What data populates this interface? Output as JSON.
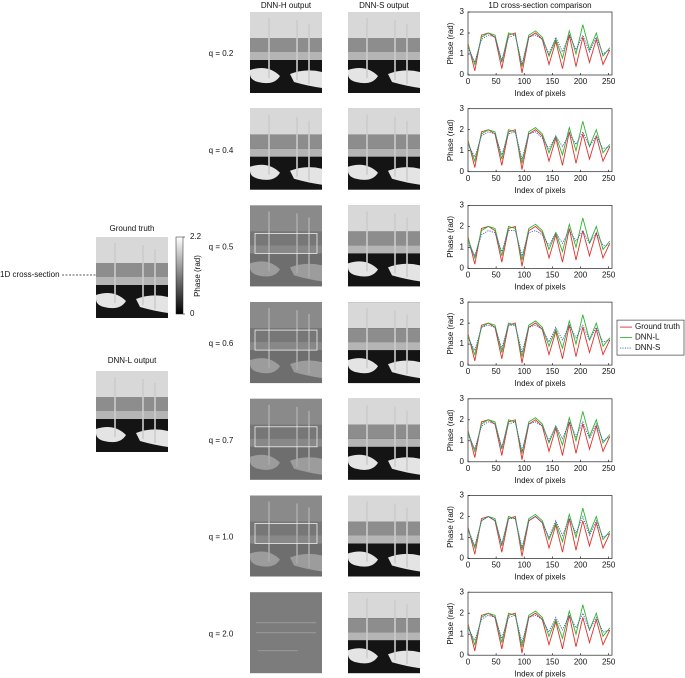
{
  "figure": {
    "columns": [
      "DNN-H output",
      "DNN-S output"
    ],
    "rows": [
      "q = 0.2",
      "q = 0.4",
      "q = 0.5",
      "q = 0.6",
      "q = 0.7",
      "q = 1.0",
      "q = 2.0"
    ],
    "ground_truth": "Ground truth",
    "cross_section": "1D cross-section",
    "dnn_l": "DNN-L output",
    "colorbar": {
      "label": "Phase (rad)",
      "lim": [
        0,
        2.2
      ],
      "ticks": [
        0,
        2.2
      ]
    }
  },
  "chart_data": [
    {
      "type": "line",
      "title": "1D cross-section comparison",
      "xlabel": "Index of pixels",
      "ylabel": "Phase (rad)",
      "x": [
        0,
        12,
        24,
        36,
        48,
        60,
        72,
        84,
        96,
        108,
        120,
        132,
        144,
        156,
        168,
        180,
        192,
        204,
        216,
        228,
        240,
        252
      ],
      "xlim": [
        0,
        256
      ],
      "ylim": [
        0,
        3
      ],
      "xticks": [
        0,
        50,
        100,
        150,
        200,
        250
      ],
      "yticks": [
        0,
        1,
        2,
        3
      ],
      "series": [
        {
          "name": "Ground truth",
          "color": "#e0302a",
          "style": "solid",
          "values": [
            1.5,
            0.2,
            1.9,
            2.0,
            1.8,
            0.3,
            1.9,
            2.0,
            0.1,
            1.8,
            2.0,
            1.7,
            0.5,
            1.6,
            0.3,
            1.9,
            0.4,
            1.8,
            0.6,
            1.7,
            0.5,
            1.2
          ]
        },
        {
          "name": "DNN-L",
          "color": "#2db52d",
          "style": "solid",
          "values": [
            1.4,
            0.5,
            1.8,
            2.0,
            1.9,
            0.6,
            2.0,
            1.9,
            0.4,
            1.9,
            2.1,
            1.8,
            0.9,
            1.7,
            0.8,
            2.1,
            1.0,
            2.4,
            1.2,
            2.0,
            0.9,
            1.3
          ]
        },
        {
          "name": "DNN-S",
          "color": "#4a56c8",
          "style": "dotted",
          "values": [
            1.3,
            0.6,
            1.7,
            1.9,
            1.8,
            0.7,
            1.8,
            1.9,
            0.5,
            1.8,
            1.9,
            1.7,
            1.0,
            1.8,
            1.1,
            1.9,
            1.2,
            1.9,
            1.1,
            1.8,
            1.0,
            1.2
          ]
        }
      ]
    },
    {
      "type": "line",
      "xlabel": "Index of pixels",
      "ylabel": "Phase (rad)",
      "x": [
        0,
        12,
        24,
        36,
        48,
        60,
        72,
        84,
        96,
        108,
        120,
        132,
        144,
        156,
        168,
        180,
        192,
        204,
        216,
        228,
        240,
        252
      ],
      "xlim": [
        0,
        256
      ],
      "ylim": [
        0,
        3
      ],
      "xticks": [
        0,
        50,
        100,
        150,
        200,
        250
      ],
      "yticks": [
        0,
        1,
        2,
        3
      ],
      "series": [
        {
          "name": "Ground truth",
          "color": "#e0302a",
          "style": "solid",
          "values": [
            1.5,
            0.2,
            1.9,
            2.0,
            1.8,
            0.3,
            1.9,
            2.0,
            0.1,
            1.8,
            2.0,
            1.7,
            0.5,
            1.6,
            0.3,
            1.9,
            0.4,
            1.8,
            0.6,
            1.7,
            0.5,
            1.2
          ]
        },
        {
          "name": "DNN-L",
          "color": "#2db52d",
          "style": "solid",
          "values": [
            1.4,
            0.5,
            1.8,
            2.0,
            1.9,
            0.6,
            2.0,
            1.9,
            0.4,
            1.9,
            2.1,
            1.8,
            0.9,
            1.7,
            0.8,
            2.1,
            1.0,
            2.4,
            1.2,
            2.0,
            0.9,
            1.3
          ]
        },
        {
          "name": "DNN-S",
          "color": "#4a56c8",
          "style": "dotted",
          "values": [
            1.3,
            0.7,
            1.7,
            1.9,
            1.8,
            0.8,
            1.8,
            1.9,
            0.6,
            1.8,
            1.9,
            1.6,
            1.1,
            1.7,
            1.2,
            1.8,
            1.3,
            1.9,
            1.2,
            1.7,
            1.1,
            1.2
          ]
        }
      ]
    },
    {
      "type": "line",
      "xlabel": "Index of pixels",
      "ylabel": "Phase (rad)",
      "x": [
        0,
        12,
        24,
        36,
        48,
        60,
        72,
        84,
        96,
        108,
        120,
        132,
        144,
        156,
        168,
        180,
        192,
        204,
        216,
        228,
        240,
        252
      ],
      "xlim": [
        0,
        256
      ],
      "ylim": [
        0,
        3
      ],
      "xticks": [
        0,
        50,
        100,
        150,
        200,
        250
      ],
      "yticks": [
        0,
        1,
        2,
        3
      ],
      "series": [
        {
          "name": "Ground truth",
          "color": "#e0302a",
          "style": "solid",
          "values": [
            1.5,
            0.2,
            1.9,
            2.0,
            1.8,
            0.3,
            1.9,
            2.0,
            0.1,
            1.8,
            2.0,
            1.7,
            0.5,
            1.6,
            0.3,
            1.9,
            0.4,
            1.8,
            0.6,
            1.7,
            0.5,
            1.2
          ]
        },
        {
          "name": "DNN-L",
          "color": "#2db52d",
          "style": "solid",
          "values": [
            1.4,
            0.5,
            1.8,
            2.0,
            1.9,
            0.6,
            2.0,
            1.9,
            0.4,
            1.9,
            2.1,
            1.8,
            0.9,
            1.7,
            0.8,
            2.1,
            1.0,
            2.4,
            1.2,
            2.0,
            0.9,
            1.3
          ]
        },
        {
          "name": "DNN-S",
          "color": "#4a56c8",
          "style": "dotted",
          "values": [
            1.2,
            0.6,
            1.6,
            1.8,
            1.7,
            0.8,
            1.8,
            1.8,
            0.6,
            1.7,
            1.8,
            1.6,
            1.1,
            1.7,
            1.2,
            1.8,
            1.3,
            1.8,
            1.2,
            1.7,
            1.1,
            1.1
          ]
        }
      ]
    },
    {
      "type": "line",
      "xlabel": "Index of pixels",
      "ylabel": "Phase (rad)",
      "legend": "right",
      "x": [
        0,
        12,
        24,
        36,
        48,
        60,
        72,
        84,
        96,
        108,
        120,
        132,
        144,
        156,
        168,
        180,
        192,
        204,
        216,
        228,
        240,
        252
      ],
      "xlim": [
        0,
        256
      ],
      "ylim": [
        0,
        3
      ],
      "xticks": [
        0,
        50,
        100,
        150,
        200,
        250
      ],
      "yticks": [
        0,
        1,
        2,
        3
      ],
      "series": [
        {
          "name": "Ground truth",
          "color": "#e0302a",
          "style": "solid",
          "values": [
            1.5,
            0.2,
            1.9,
            2.0,
            1.8,
            0.3,
            1.9,
            2.0,
            0.1,
            1.8,
            2.0,
            1.7,
            0.5,
            1.6,
            0.3,
            1.9,
            0.4,
            1.8,
            0.6,
            1.7,
            0.5,
            1.2
          ]
        },
        {
          "name": "DNN-L",
          "color": "#2db52d",
          "style": "solid",
          "values": [
            1.4,
            0.5,
            1.8,
            2.0,
            1.9,
            0.6,
            2.0,
            1.9,
            0.4,
            1.9,
            2.1,
            1.8,
            0.9,
            1.7,
            0.8,
            2.1,
            1.0,
            2.4,
            1.2,
            2.0,
            0.9,
            1.3
          ]
        },
        {
          "name": "DNN-S",
          "color": "#4a56c8",
          "style": "dotted",
          "values": [
            1.3,
            0.7,
            1.8,
            1.9,
            1.8,
            0.8,
            1.9,
            1.9,
            0.6,
            1.8,
            1.9,
            1.7,
            1.1,
            1.8,
            1.2,
            1.9,
            1.3,
            1.9,
            1.2,
            1.8,
            1.1,
            1.2
          ]
        }
      ]
    },
    {
      "type": "line",
      "xlabel": "Index of pixels",
      "ylabel": "Phase (rad)",
      "x": [
        0,
        12,
        24,
        36,
        48,
        60,
        72,
        84,
        96,
        108,
        120,
        132,
        144,
        156,
        168,
        180,
        192,
        204,
        216,
        228,
        240,
        252
      ],
      "xlim": [
        0,
        256
      ],
      "ylim": [
        0,
        3
      ],
      "xticks": [
        0,
        50,
        100,
        150,
        200,
        250
      ],
      "yticks": [
        0,
        1,
        2,
        3
      ],
      "series": [
        {
          "name": "Ground truth",
          "color": "#e0302a",
          "style": "solid",
          "values": [
            1.5,
            0.2,
            1.9,
            2.0,
            1.8,
            0.3,
            1.9,
            2.0,
            0.1,
            1.8,
            2.0,
            1.7,
            0.5,
            1.6,
            0.3,
            1.9,
            0.4,
            1.8,
            0.6,
            1.7,
            0.5,
            1.2
          ]
        },
        {
          "name": "DNN-L",
          "color": "#2db52d",
          "style": "solid",
          "values": [
            1.4,
            0.5,
            1.8,
            2.0,
            1.9,
            0.6,
            2.0,
            1.9,
            0.4,
            1.9,
            2.1,
            1.8,
            0.9,
            1.7,
            0.8,
            2.1,
            1.0,
            2.4,
            1.2,
            2.0,
            0.9,
            1.3
          ]
        },
        {
          "name": "DNN-S",
          "color": "#4a56c8",
          "style": "dotted",
          "values": [
            1.3,
            0.6,
            1.7,
            1.9,
            1.8,
            0.7,
            1.8,
            1.9,
            0.5,
            1.8,
            1.9,
            1.7,
            1.0,
            1.7,
            1.1,
            1.9,
            1.2,
            1.9,
            1.1,
            1.8,
            1.0,
            1.2
          ]
        }
      ]
    },
    {
      "type": "line",
      "xlabel": "Index of pixels",
      "ylabel": "Phase (rad)",
      "x": [
        0,
        12,
        24,
        36,
        48,
        60,
        72,
        84,
        96,
        108,
        120,
        132,
        144,
        156,
        168,
        180,
        192,
        204,
        216,
        228,
        240,
        252
      ],
      "xlim": [
        0,
        256
      ],
      "ylim": [
        0,
        3
      ],
      "xticks": [
        0,
        50,
        100,
        150,
        200,
        250
      ],
      "yticks": [
        0,
        1,
        2,
        3
      ],
      "series": [
        {
          "name": "Ground truth",
          "color": "#e0302a",
          "style": "solid",
          "values": [
            1.5,
            0.2,
            1.9,
            2.0,
            1.8,
            0.3,
            1.9,
            2.0,
            0.1,
            1.8,
            2.0,
            1.7,
            0.5,
            1.6,
            0.3,
            1.9,
            0.4,
            1.8,
            0.6,
            1.7,
            0.5,
            1.2
          ]
        },
        {
          "name": "DNN-L",
          "color": "#2db52d",
          "style": "solid",
          "values": [
            1.4,
            0.5,
            1.8,
            2.0,
            1.9,
            0.6,
            2.0,
            1.9,
            0.4,
            1.9,
            2.1,
            1.8,
            0.9,
            1.7,
            0.8,
            2.1,
            1.0,
            2.4,
            1.2,
            2.0,
            0.9,
            1.3
          ]
        },
        {
          "name": "DNN-S",
          "color": "#4a56c8",
          "style": "dotted",
          "values": [
            1.4,
            0.6,
            1.8,
            2.0,
            1.8,
            0.7,
            1.9,
            1.9,
            0.5,
            1.8,
            2.0,
            1.7,
            1.0,
            1.8,
            1.1,
            1.9,
            1.2,
            2.0,
            1.1,
            1.8,
            1.0,
            1.2
          ]
        }
      ]
    },
    {
      "type": "line",
      "xlabel": "Index of pixels",
      "ylabel": "Phase (rad)",
      "x": [
        0,
        12,
        24,
        36,
        48,
        60,
        72,
        84,
        96,
        108,
        120,
        132,
        144,
        156,
        168,
        180,
        192,
        204,
        216,
        228,
        240,
        252
      ],
      "xlim": [
        0,
        256
      ],
      "ylim": [
        0,
        3
      ],
      "xticks": [
        0,
        50,
        100,
        150,
        200,
        250
      ],
      "yticks": [
        0,
        1,
        2,
        3
      ],
      "series": [
        {
          "name": "Ground truth",
          "color": "#e0302a",
          "style": "solid",
          "values": [
            1.5,
            0.2,
            1.9,
            2.0,
            1.8,
            0.3,
            1.9,
            2.0,
            0.1,
            1.8,
            2.0,
            1.7,
            0.5,
            1.6,
            0.3,
            1.9,
            0.4,
            1.8,
            0.6,
            1.7,
            0.5,
            1.2
          ]
        },
        {
          "name": "DNN-L",
          "color": "#2db52d",
          "style": "solid",
          "values": [
            1.4,
            0.5,
            1.8,
            2.0,
            1.9,
            0.6,
            2.0,
            1.9,
            0.4,
            1.9,
            2.1,
            1.8,
            0.9,
            1.7,
            0.8,
            2.1,
            1.0,
            2.4,
            1.2,
            2.0,
            0.9,
            1.3
          ]
        },
        {
          "name": "DNN-S",
          "color": "#4a56c8",
          "style": "dotted",
          "values": [
            1.3,
            0.7,
            1.7,
            1.9,
            1.8,
            0.8,
            1.8,
            1.9,
            0.6,
            1.8,
            1.9,
            1.7,
            1.1,
            1.8,
            1.2,
            1.9,
            1.3,
            2.0,
            1.2,
            1.8,
            1.1,
            1.2
          ]
        }
      ]
    }
  ]
}
